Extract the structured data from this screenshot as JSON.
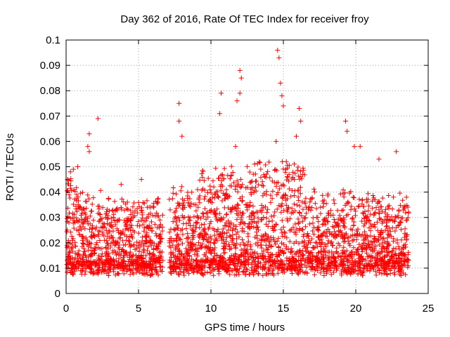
{
  "chart_data": {
    "type": "scatter",
    "title": "Day 362 of 2016, Rate Of TEC Index for receiver froy",
    "xlabel": "GPS time / hours",
    "ylabel": "ROTI / TECUs",
    "xlim": [
      0,
      25
    ],
    "ylim": [
      0,
      0.1
    ],
    "xticks": [
      0,
      5,
      10,
      15,
      20,
      25
    ],
    "xtick_labels": [
      "0",
      "5",
      "10",
      "15",
      "20",
      "25"
    ],
    "yticks": [
      0,
      0.01,
      0.02,
      0.03,
      0.04,
      0.05,
      0.06,
      0.07,
      0.08,
      0.09,
      0.1
    ],
    "ytick_labels": [
      "0",
      "0.01",
      "0.02",
      "0.03",
      "0.04",
      "0.05",
      "0.06",
      "0.07",
      "0.08",
      "0.09",
      "0.1"
    ],
    "grid": true,
    "marker": "+",
    "color": "#ff0000",
    "data_gap_hours": [
      6.7,
      7.1
    ],
    "series": [
      {
        "name": "ROTI",
        "x": [
          0.1,
          0.3,
          0.5,
          0.8,
          1.5,
          1.6,
          1.6,
          2.2,
          3.8,
          5.2,
          7.8,
          7.8,
          8.0,
          10.7,
          10.6,
          11.8,
          12.0,
          12.1,
          12.0,
          11.7,
          14.6,
          14.7,
          14.8,
          14.9,
          15.0,
          14.5,
          16.1,
          16.2,
          15.9,
          19.3,
          19.4,
          19.9,
          20.3,
          21.6,
          22.8,
          23.5
        ],
        "y": [
          0.045,
          0.048,
          0.049,
          0.05,
          0.058,
          0.063,
          0.056,
          0.069,
          0.043,
          0.045,
          0.075,
          0.068,
          0.062,
          0.079,
          0.071,
          0.076,
          0.088,
          0.085,
          0.079,
          0.058,
          0.096,
          0.093,
          0.083,
          0.078,
          0.074,
          0.06,
          0.073,
          0.068,
          0.062,
          0.068,
          0.064,
          0.058,
          0.058,
          0.053,
          0.056,
          0.038
        ]
      }
    ]
  }
}
